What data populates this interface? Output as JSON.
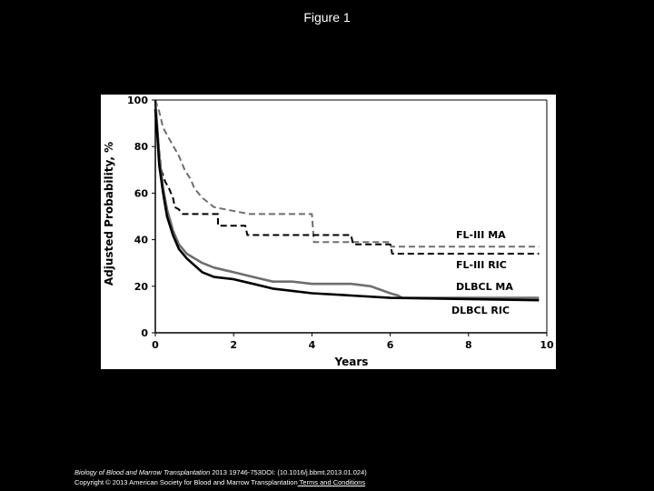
{
  "page": {
    "title": "Figure 1",
    "citation": {
      "journal": "Biology of Blood and Marrow Transplantation",
      "details": " 2013 19746-753DOI: (10.1016/j.bbmt.2013.01.024)"
    },
    "copyright": "Copyright © 2013 American Society for Blood and Marrow Transplantation",
    "terms_link": " Terms and Conditions"
  },
  "chart_data": {
    "type": "line",
    "title": "",
    "xlabel": "Years",
    "ylabel": "Adjusted Probability, %",
    "xlim": [
      0,
      10
    ],
    "ylim": [
      0,
      100
    ],
    "xticks": [
      "0",
      "2",
      "4",
      "6",
      "8",
      "10"
    ],
    "yticks": [
      "0",
      "20",
      "40",
      "60",
      "80",
      "100"
    ],
    "grid": false,
    "series": [
      {
        "name": "FL-III MA",
        "color": "#6e6e6e",
        "style": "dashed",
        "points": [
          [
            0,
            100
          ],
          [
            0.1,
            95
          ],
          [
            0.2,
            88
          ],
          [
            0.4,
            82
          ],
          [
            0.6,
            76
          ],
          [
            0.75,
            70
          ],
          [
            0.9,
            66
          ],
          [
            1.0,
            62
          ],
          [
            1.2,
            58
          ],
          [
            1.5,
            54
          ],
          [
            2.4,
            51
          ],
          [
            4.0,
            51
          ],
          [
            4.05,
            39
          ],
          [
            6.0,
            39
          ],
          [
            6.02,
            37
          ],
          [
            9.8,
            37
          ]
        ]
      },
      {
        "name": "FL-III RIC",
        "color": "#000000",
        "style": "dashed",
        "points": [
          [
            0,
            100
          ],
          [
            0.05,
            88
          ],
          [
            0.1,
            78
          ],
          [
            0.15,
            70
          ],
          [
            0.25,
            65
          ],
          [
            0.35,
            62
          ],
          [
            0.45,
            58
          ],
          [
            0.5,
            54
          ],
          [
            0.6,
            53
          ],
          [
            0.7,
            51
          ],
          [
            1.6,
            51
          ],
          [
            1.6,
            46
          ],
          [
            2.3,
            46
          ],
          [
            2.35,
            42
          ],
          [
            5.0,
            42
          ],
          [
            5.05,
            38
          ],
          [
            6.0,
            38
          ],
          [
            6.05,
            34
          ],
          [
            9.8,
            34
          ]
        ]
      },
      {
        "name": "DLBCL MA",
        "color": "#6e6e6e",
        "style": "solid",
        "points": [
          [
            0,
            100
          ],
          [
            0.05,
            88
          ],
          [
            0.1,
            76
          ],
          [
            0.2,
            62
          ],
          [
            0.3,
            53
          ],
          [
            0.45,
            44
          ],
          [
            0.6,
            38
          ],
          [
            0.8,
            34
          ],
          [
            1.0,
            32
          ],
          [
            1.2,
            30
          ],
          [
            1.5,
            28
          ],
          [
            2.0,
            26
          ],
          [
            2.5,
            24
          ],
          [
            3.0,
            22
          ],
          [
            3.5,
            22
          ],
          [
            4.0,
            21
          ],
          [
            5.0,
            21
          ],
          [
            5.5,
            20
          ],
          [
            6.0,
            17
          ],
          [
            6.2,
            16
          ],
          [
            6.3,
            15
          ],
          [
            9.8,
            15
          ]
        ]
      },
      {
        "name": "DLBCL RIC",
        "color": "#000000",
        "style": "solid",
        "points": [
          [
            0,
            96
          ],
          [
            0.05,
            85
          ],
          [
            0.1,
            72
          ],
          [
            0.2,
            60
          ],
          [
            0.3,
            50
          ],
          [
            0.45,
            42
          ],
          [
            0.6,
            36
          ],
          [
            0.8,
            32
          ],
          [
            1.0,
            29
          ],
          [
            1.2,
            26
          ],
          [
            1.5,
            24
          ],
          [
            2.0,
            23
          ],
          [
            2.5,
            21
          ],
          [
            3.0,
            19
          ],
          [
            3.5,
            18
          ],
          [
            4.0,
            17
          ],
          [
            5.0,
            16
          ],
          [
            6.0,
            15
          ],
          [
            9.8,
            14
          ]
        ]
      }
    ]
  }
}
